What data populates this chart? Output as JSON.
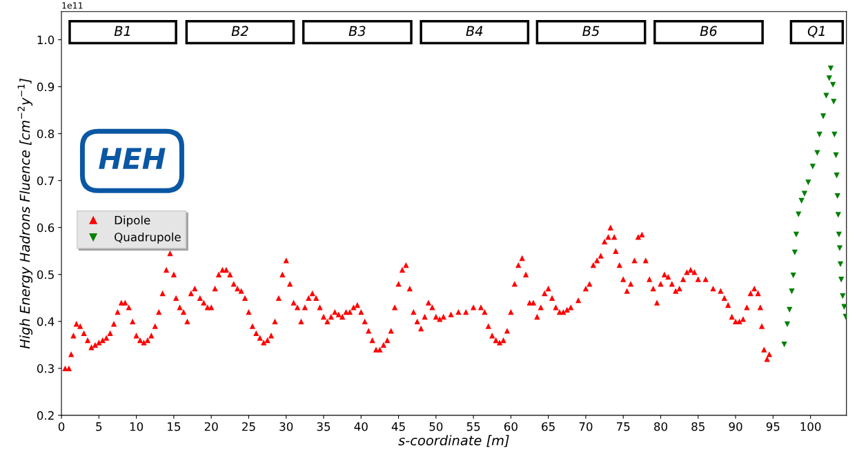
{
  "chart_data": {
    "type": "scatter",
    "xlabel": "s-coordinate [m]",
    "ylabel": "High Energy Hadrons Fluence [cm$^{−2}$y$^{−1}$]",
    "xlim": [
      0,
      104.8
    ],
    "ylim": [
      0.2,
      1.06
    ],
    "xticks": [
      0,
      5,
      10,
      15,
      20,
      25,
      30,
      35,
      40,
      45,
      50,
      55,
      60,
      65,
      70,
      75,
      80,
      85,
      90,
      95,
      100
    ],
    "yticks": [
      0.2,
      0.3,
      0.4,
      0.5,
      0.6,
      0.7,
      0.8,
      0.9,
      {
        "value": 1.0,
        "label": "1.0"
      }
    ],
    "bands": [
      {
        "axis": "x",
        "from": 1.1,
        "to": 15.3,
        "label": "B1",
        "color": "#ffffff"
      },
      {
        "axis": "x",
        "from": 16.7,
        "to": 31.0,
        "label": "B2",
        "color": "#ffffff"
      },
      {
        "axis": "x",
        "from": 32.3,
        "to": 46.7,
        "label": "B3",
        "color": "#ffffff"
      },
      {
        "axis": "x",
        "from": 48.0,
        "to": 62.3,
        "label": "B4",
        "color": "#ffffff"
      },
      {
        "axis": "x",
        "from": 63.5,
        "to": 77.9,
        "label": "B5",
        "color": "#ffffff"
      },
      {
        "axis": "x",
        "from": 79.2,
        "to": 93.6,
        "label": "B6",
        "color": "#ffffff"
      },
      {
        "axis": "x",
        "from": 97.4,
        "to": 104.3,
        "label": "Q1",
        "color": "#ffffff"
      }
    ],
    "legend": "left",
    "grid": false,
    "series": [
      {
        "name": "Dipole",
        "color": "#ff0000",
        "marker": "triangle",
        "x": [
          0.5,
          1.0,
          1.3,
          1.6,
          2,
          2.5,
          3,
          3.5,
          4,
          4.5,
          5,
          5.5,
          6,
          6.5,
          7,
          7.5,
          8,
          8.5,
          9,
          9.5,
          10,
          10.5,
          11,
          11.5,
          12,
          12.5,
          13,
          13.5,
          14,
          14.5,
          15,
          15.3,
          15.8,
          16.3,
          16.8,
          17.3,
          17.8,
          18.5,
          19,
          19.5,
          20,
          20.5,
          21,
          21.5,
          22,
          22.5,
          23,
          23.5,
          24,
          24.5,
          25,
          25.5,
          26,
          26.5,
          27,
          27.5,
          28,
          28.5,
          29,
          29.5,
          30,
          30.5,
          31,
          31.5,
          32,
          32.5,
          33,
          33.5,
          34,
          34.5,
          35,
          35.5,
          36,
          36.5,
          37,
          37.5,
          38,
          38.5,
          39,
          39.5,
          40,
          40.5,
          41,
          41.5,
          42,
          42.5,
          43,
          43.5,
          44,
          44.5,
          45,
          45.5,
          46,
          46.5,
          47,
          47.5,
          48,
          48.5,
          49,
          49.5,
          50,
          50.5,
          51,
          52,
          53,
          54,
          55,
          56,
          56.5,
          57,
          57.5,
          58,
          58.5,
          59,
          59.5,
          60,
          60.5,
          61,
          61.5,
          62,
          62.5,
          63,
          63.5,
          64,
          64.5,
          65,
          65.5,
          66,
          66.5,
          67,
          67.5,
          68,
          69,
          70,
          70.5,
          71,
          71.5,
          72,
          72.5,
          73,
          73.3,
          73.8,
          74,
          74.5,
          75,
          75.5,
          76,
          76.5,
          77,
          77.5,
          78,
          78.5,
          79,
          79.5,
          80,
          80.5,
          81,
          81.5,
          82,
          82.5,
          83,
          83.5,
          84,
          84.5,
          85,
          86,
          87,
          88,
          88.5,
          89,
          89.5,
          90,
          90.5,
          91,
          91.5,
          92,
          92.5,
          93,
          93.3,
          93.5,
          93.8,
          94.2,
          94.5
        ],
        "values": [
          0.3,
          0.3,
          0.33,
          0.37,
          0.395,
          0.39,
          0.375,
          0.36,
          0.345,
          0.35,
          0.355,
          0.36,
          0.365,
          0.375,
          0.395,
          0.42,
          0.44,
          0.44,
          0.43,
          0.4,
          0.37,
          0.36,
          0.355,
          0.36,
          0.37,
          0.39,
          0.42,
          0.46,
          0.51,
          0.545,
          0.5,
          0.45,
          0.43,
          0.42,
          0.4,
          0.46,
          0.47,
          0.45,
          0.44,
          0.43,
          0.43,
          0.47,
          0.5,
          0.51,
          0.51,
          0.5,
          0.48,
          0.47,
          0.465,
          0.45,
          0.42,
          0.39,
          0.375,
          0.365,
          0.355,
          0.36,
          0.37,
          0.4,
          0.45,
          0.5,
          0.53,
          0.48,
          0.44,
          0.43,
          0.4,
          0.43,
          0.45,
          0.46,
          0.45,
          0.43,
          0.41,
          0.4,
          0.41,
          0.42,
          0.415,
          0.41,
          0.42,
          0.42,
          0.43,
          0.435,
          0.42,
          0.4,
          0.38,
          0.36,
          0.34,
          0.34,
          0.35,
          0.36,
          0.38,
          0.43,
          0.48,
          0.51,
          0.52,
          0.47,
          0.42,
          0.4,
          0.385,
          0.41,
          0.44,
          0.43,
          0.41,
          0.405,
          0.41,
          0.415,
          0.42,
          0.42,
          0.43,
          0.43,
          0.42,
          0.39,
          0.37,
          0.36,
          0.355,
          0.36,
          0.38,
          0.42,
          0.48,
          0.52,
          0.535,
          0.5,
          0.44,
          0.44,
          0.41,
          0.43,
          0.46,
          0.47,
          0.45,
          0.43,
          0.42,
          0.42,
          0.425,
          0.43,
          0.445,
          0.47,
          0.48,
          0.52,
          0.53,
          0.54,
          0.57,
          0.58,
          0.6,
          0.58,
          0.55,
          0.52,
          0.49,
          0.465,
          0.48,
          0.53,
          0.58,
          0.585,
          0.53,
          0.49,
          0.47,
          0.44,
          0.48,
          0.5,
          0.495,
          0.48,
          0.465,
          0.47,
          0.49,
          0.505,
          0.51,
          0.505,
          0.49,
          0.49,
          0.47,
          0.465,
          0.45,
          0.435,
          0.41,
          0.4,
          0.4,
          0.405,
          0.43,
          0.46,
          0.47,
          0.46,
          0.43,
          0.39,
          0.34,
          0.32,
          0.33
        ]
      },
      {
        "name": "Quadrupole",
        "color": "#008000",
        "marker": "triangle_down",
        "x": [
          96.5,
          96.9,
          97.2,
          97.5,
          97.7,
          97.9,
          98.1,
          98.4,
          98.8,
          99.2,
          99.7,
          100.3,
          100.9,
          101.2,
          101.7,
          102.1,
          102.5,
          102.7,
          103.0,
          103.1,
          103.2,
          103.4,
          103.5,
          103.6,
          103.7,
          103.8,
          103.9,
          104.0,
          104.1,
          104.3,
          104.5,
          104.7
        ],
        "values": [
          0.351,
          0.394,
          0.425,
          0.464,
          0.498,
          0.547,
          0.585,
          0.628,
          0.657,
          0.672,
          0.696,
          0.73,
          0.759,
          0.798,
          0.837,
          0.881,
          0.918,
          0.939,
          0.904,
          0.868,
          0.798,
          0.754,
          0.711,
          0.667,
          0.627,
          0.585,
          0.556,
          0.522,
          0.489,
          0.454,
          0.431,
          0.41
        ]
      }
    ],
    "annotations": [
      "1e11",
      "HEH"
    ]
  }
}
